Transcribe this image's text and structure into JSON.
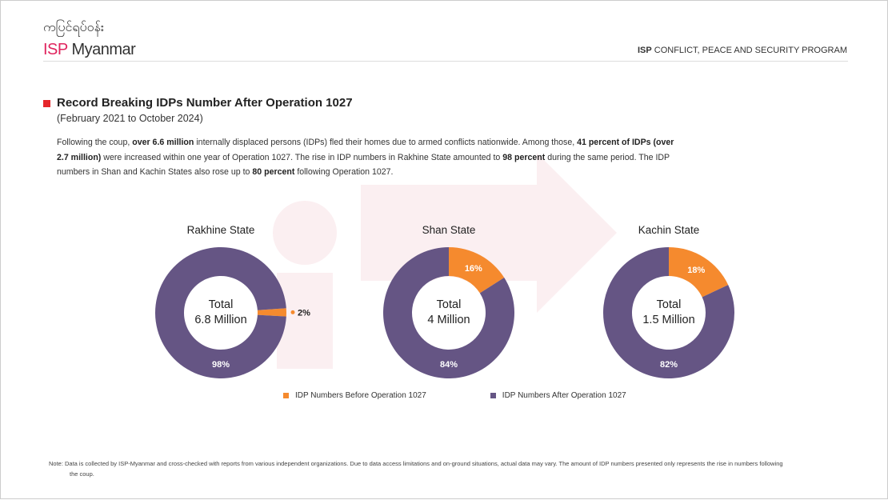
{
  "header": {
    "logo_myanmar": "ကပြင်ရပ်ဝန်း",
    "logo_isp": "ISP",
    "logo_name": "Myanmar",
    "program_bold": "ISP",
    "program_rest": "CONFLICT, PEACE AND SECURITY PROGRAM"
  },
  "section": {
    "title": "Record Breaking IDPs Number After Operation 1027",
    "subtitle": "(February 2021 to October 2024)"
  },
  "paragraph": {
    "p1": "Following the coup, ",
    "b1": "over 6.6 million",
    "p2": " internally displaced persons (IDPs) fled their homes due to armed conflicts nationwide. Among those, ",
    "b2": "41 percent of IDPs (over 2.7 million)",
    "p3": " were increased within one year of Operation 1027. The rise in IDP numbers in Rakhine State amounted to ",
    "b3": "98 percent",
    "p4": " during the same period. The IDP numbers in Shan and Kachin States also rose up to ",
    "b4": "80 percent",
    "p5": " following Operation 1027."
  },
  "chart_data": [
    {
      "type": "pie",
      "title": "Rakhine State",
      "center_label": [
        "Total",
        "6.8 Million"
      ],
      "categories": [
        "IDP Numbers Before Operation 1027",
        "IDP Numbers After Operation 1027"
      ],
      "values": [
        2,
        98
      ],
      "labels": [
        "2%",
        "98%"
      ]
    },
    {
      "type": "pie",
      "title": "Shan State",
      "center_label": [
        "Total",
        "4 Million"
      ],
      "categories": [
        "IDP Numbers Before Operation 1027",
        "IDP Numbers After Operation 1027"
      ],
      "values": [
        16,
        84
      ],
      "labels": [
        "16%",
        "84%"
      ]
    },
    {
      "type": "pie",
      "title": "Kachin State",
      "center_label": [
        "Total",
        "1.5 Million"
      ],
      "categories": [
        "IDP Numbers Before Operation 1027",
        "IDP Numbers After Operation 1027"
      ],
      "values": [
        18,
        82
      ],
      "labels": [
        "18%",
        "82%"
      ]
    }
  ],
  "legend": [
    {
      "label": "IDP Numbers Before Operation 1027",
      "color": "#f58a2e"
    },
    {
      "label": "IDP Numbers After Operation 1027",
      "color": "#655584"
    }
  ],
  "note": "Note:  Data is collected by ISP-Myanmar and cross-checked with reports from various independent organizations. Due to data access limitations and on-ground situations, actual data may vary. The amount of IDP numbers presented only represents the rise in numbers following the coup."
}
